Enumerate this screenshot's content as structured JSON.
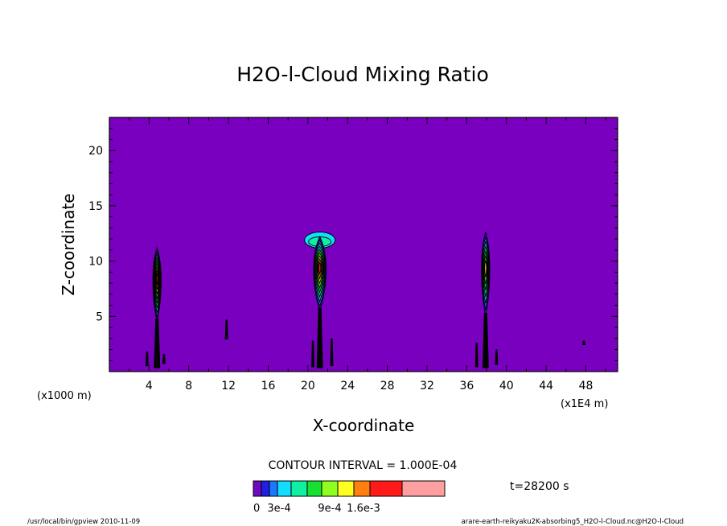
{
  "chart_data": {
    "type": "heatmap",
    "title": "H2O-l-Cloud Mixing Ratio",
    "xlabel": "X-coordinate",
    "ylabel": "Z-coordinate",
    "x_units_left": "(x1000 m)",
    "x_units_right": "(x1E4 m)",
    "xlim": [
      0,
      51.2
    ],
    "ylim": [
      0,
      23
    ],
    "x_ticks": [
      4,
      8,
      12,
      16,
      20,
      24,
      28,
      32,
      36,
      40,
      44,
      48
    ],
    "y_ticks": [
      5,
      10,
      15,
      20
    ],
    "contour_interval_label": "CONTOUR INTERVAL = 1.000E-04",
    "time_label": "t=28200 s",
    "colorbar": {
      "labels": [
        "0",
        "3e-4",
        "9e-4",
        "1.6e-3"
      ],
      "levels": [
        0,
        0.0001,
        0.0002,
        0.0003,
        0.0005,
        0.0007,
        0.0009,
        0.0011,
        0.0013,
        0.0016,
        0.002
      ],
      "colors": [
        "#6e0bbd",
        "#2020e0",
        "#1e78ff",
        "#14dcff",
        "#10f0a0",
        "#18e030",
        "#90ff20",
        "#ffff20",
        "#ff8010",
        "#ff1a1a",
        "#ffa0a0"
      ]
    },
    "background_color": "#7a00c0",
    "clouds": [
      {
        "x": 4.8,
        "z_bottom": 4.5,
        "z_top": 11.2,
        "max_level": "red"
      },
      {
        "x": 21.2,
        "z_bottom": 5.5,
        "z_top": 13.2,
        "anvil": true,
        "max_level": "red"
      },
      {
        "x": 37.9,
        "z_bottom": 5.0,
        "z_top": 12.6,
        "max_level": "yellow"
      }
    ]
  },
  "footer": {
    "left": "/usr/local/bin/gpview   2010-11-09",
    "right": "arare-earth-reikyaku2K-absorbing5_H2O-l-Cloud.nc@H2O-l-Cloud"
  }
}
